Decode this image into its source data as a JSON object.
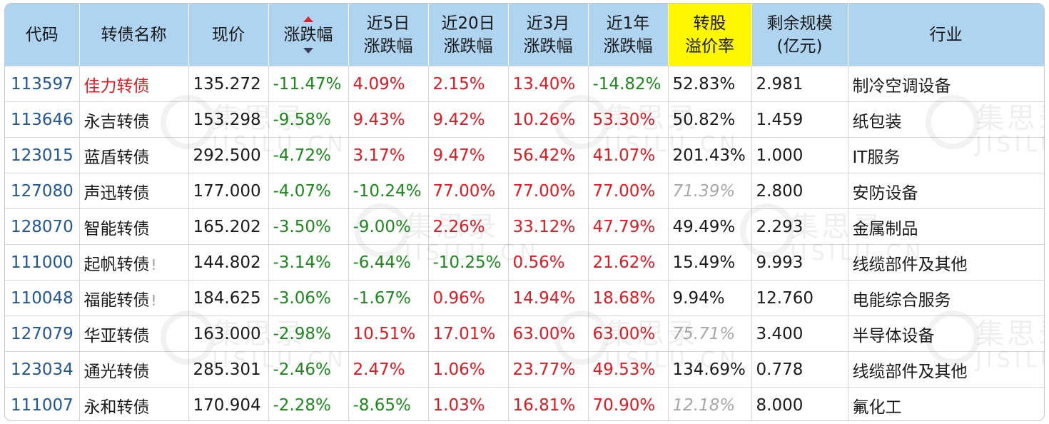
{
  "watermark": {
    "top": "集思录",
    "bottom": "JISILU.CN"
  },
  "table": {
    "headers": {
      "code": "代码",
      "name": "转债名称",
      "price": "现价",
      "change": "涨跌幅",
      "d5_line1": "近5日",
      "d5_line2": "涨跌幅",
      "d20_line1": "近20日",
      "d20_line2": "涨跌幅",
      "m3_line1": "近3月",
      "m3_line2": "涨跌幅",
      "y1_line1": "近1年",
      "y1_line2": "涨跌幅",
      "premium_line1": "转股",
      "premium_line2": "溢价率",
      "size_line1": "剩余规模",
      "size_line2": "(亿元)",
      "industry": "行业"
    },
    "rows": [
      {
        "code": "113597",
        "name": "佳力转债",
        "price": "135.272",
        "change": "-11.47%",
        "d5": "4.09%",
        "d20": "2.15%",
        "m3": "13.40%",
        "y1": "-14.82%",
        "premium": "52.83%",
        "size": "2.981",
        "industry": "制冷空调设备"
      },
      {
        "code": "113646",
        "name": "永吉转债",
        "price": "153.298",
        "change": "-9.58%",
        "d5": "9.43%",
        "d20": "9.42%",
        "m3": "10.26%",
        "y1": "53.30%",
        "premium": "50.82%",
        "size": "1.459",
        "industry": "纸包装"
      },
      {
        "code": "123015",
        "name": "蓝盾转债",
        "price": "292.500",
        "change": "-4.72%",
        "d5": "3.17%",
        "d20": "9.47%",
        "m3": "56.42%",
        "y1": "41.07%",
        "premium": "201.43%",
        "size": "1.000",
        "industry": "IT服务"
      },
      {
        "code": "127080",
        "name": "声迅转债",
        "price": "177.000",
        "change": "-4.07%",
        "d5": "-10.24%",
        "d20": "77.00%",
        "m3": "77.00%",
        "y1": "77.00%",
        "premium": "71.39%",
        "size": "2.800",
        "industry": "安防设备"
      },
      {
        "code": "128070",
        "name": "智能转债",
        "price": "165.202",
        "change": "-3.50%",
        "d5": "-9.00%",
        "d20": "2.26%",
        "m3": "33.12%",
        "y1": "47.79%",
        "premium": "49.49%",
        "size": "2.293",
        "industry": "金属制品"
      },
      {
        "code": "111000",
        "name": "起帆转债",
        "excl": "!",
        "price": "144.802",
        "change": "-3.14%",
        "d5": "-6.44%",
        "d20": "-10.25%",
        "m3": "0.56%",
        "y1": "21.62%",
        "premium": "15.49%",
        "size": "9.993",
        "industry": "线缆部件及其他"
      },
      {
        "code": "110048",
        "name": "福能转债",
        "excl": "!",
        "price": "184.625",
        "change": "-3.06%",
        "d5": "-1.67%",
        "d20": "0.96%",
        "m3": "14.94%",
        "y1": "18.68%",
        "premium": "9.94%",
        "size": "12.760",
        "industry": "电能综合服务"
      },
      {
        "code": "127079",
        "name": "华亚转债",
        "price": "163.000",
        "change": "-2.98%",
        "d5": "10.51%",
        "d20": "17.01%",
        "m3": "63.00%",
        "y1": "63.00%",
        "premium": "75.71%",
        "size": "3.400",
        "industry": "半导体设备"
      },
      {
        "code": "123034",
        "name": "通光转债",
        "price": "285.301",
        "change": "-2.46%",
        "d5": "2.47%",
        "d20": "1.06%",
        "m3": "23.77%",
        "y1": "49.53%",
        "premium": "134.69%",
        "size": "0.778",
        "industry": "线缆部件及其他"
      },
      {
        "code": "111007",
        "name": "永和转债",
        "price": "170.904",
        "change": "-2.28%",
        "d5": "-8.65%",
        "d20": "1.03%",
        "m3": "16.81%",
        "y1": "70.90%",
        "premium": "12.18%",
        "size": "8.000",
        "industry": "氟化工"
      }
    ]
  }
}
